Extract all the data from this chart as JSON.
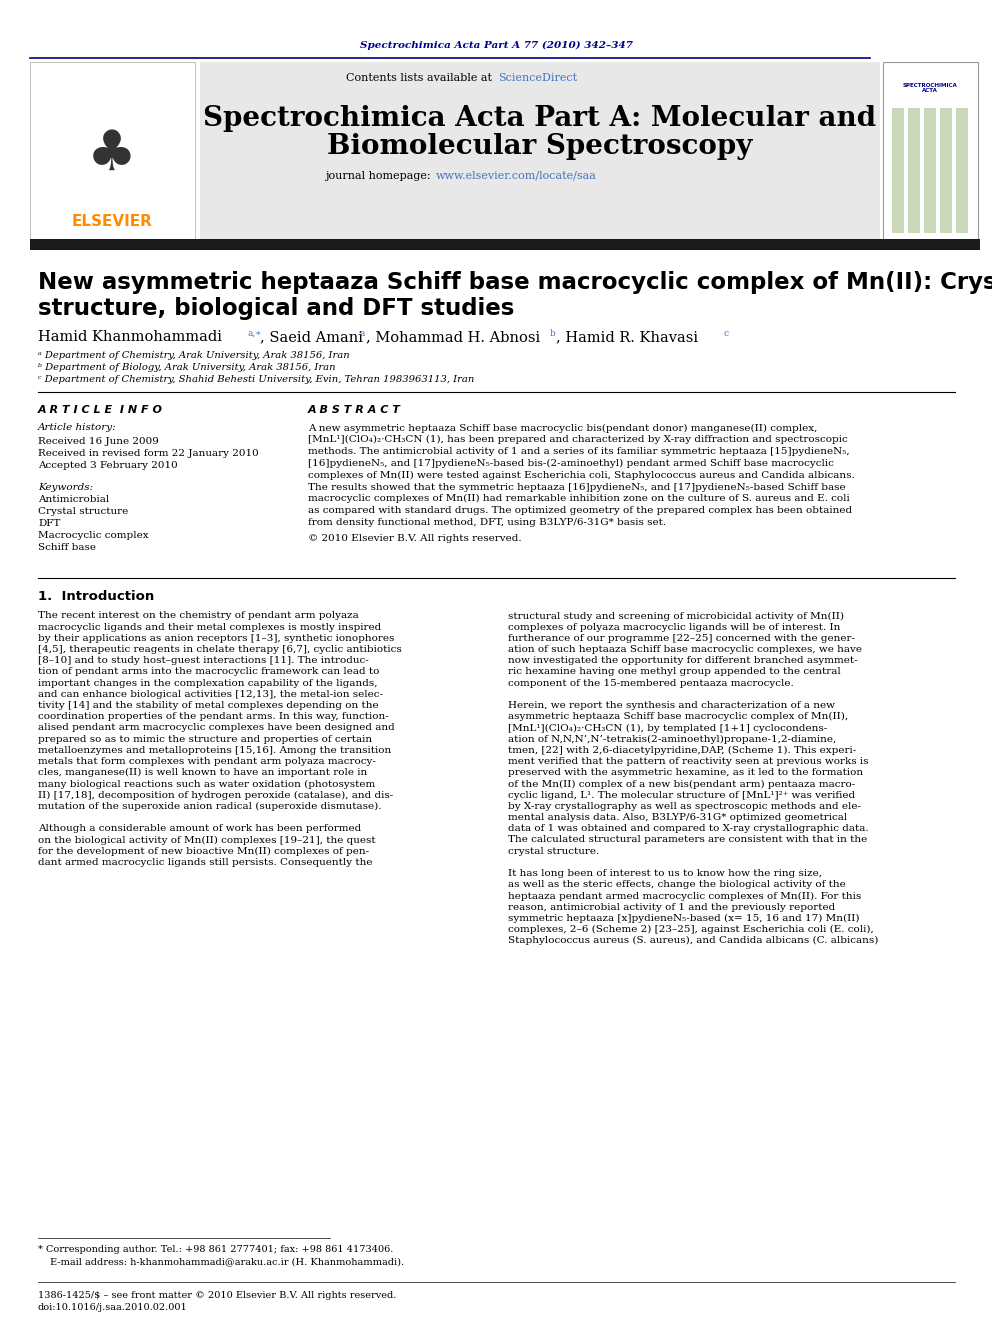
{
  "page_bg": "#ffffff",
  "top_journal_ref": "Spectrochimica Acta Part A 77 (2010) 342–347",
  "top_journal_ref_color": "#00008B",
  "journal_name_line1": "Spectrochimica Acta Part A: Molecular and",
  "journal_name_line2": "Biomolecular Spectroscopy",
  "journal_homepage_url": "www.elsevier.com/locate/saa",
  "sciencedirect_color": "#4472C4",
  "elsevier_color": "#FF8C00",
  "black_bar_color": "#1a1a1a",
  "affil_a": "ᵃ Department of Chemistry, Arak University, Arak 38156, Iran",
  "affil_b": "ᵇ Department of Biology, Arak University, Arak 38156, Iran",
  "affil_c": "ᶜ Department of Chemistry, Shahid Behesti University, Evin, Tehran 1983963113, Iran",
  "article_info_header": "A R T I C L E  I N F O",
  "abstract_header": "A B S T R A C T",
  "article_history_label": "Article history:",
  "received_text": "Received 16 June 2009",
  "revised_text": "Received in revised form 22 January 2010",
  "accepted_text": "Accepted 3 February 2010",
  "keywords_label": "Keywords:",
  "keywords": [
    "Antimicrobial",
    "Crystal structure",
    "DFT",
    "Macrocyclic complex",
    "Schiff base"
  ],
  "abstract_lines": [
    "A new asymmetric heptaaza Schiff base macrocyclic bis(pendant donor) manganese(II) complex,",
    "[MnL¹](ClO₄)₂·CH₃CN (1), has been prepared and characterized by X-ray diffraction and spectroscopic",
    "methods. The antimicrobial activity of 1 and a series of its familiar symmetric heptaaza [15]pydieneN₅,",
    "[16]pydieneN₅, and [17]pydieneN₅-based bis-(2-aminoethyl) pendant armed Schiff base macrocyclic",
    "complexes of Mn(II) were tested against Escherichia coli, Staphylococcus aureus and Candida albicans.",
    "The results showed that the symmetric heptaaza [16]pydieneN₅, and [17]pydieneN₅-based Schiff base",
    "macrocyclic complexes of Mn(II) had remarkable inhibition zone on the culture of S. aureus and E. coli",
    "as compared with standard drugs. The optimized geometry of the prepared complex has been obtained",
    "from density functional method, DFT, using B3LYP/6-31G* basis set."
  ],
  "copyright_text": "© 2010 Elsevier B.V. All rights reserved.",
  "section1_header": "1.  Introduction",
  "intro_col1_lines": [
    "The recent interest on the chemistry of pendant arm polyaza",
    "macrocyclic ligands and their metal complexes is mostly inspired",
    "by their applications as anion receptors [1–3], synthetic ionophores",
    "[4,5], therapeutic reagents in chelate therapy [6,7], cyclic antibiotics",
    "[8–10] and to study host–guest interactions [11]. The introduc-",
    "tion of pendant arms into the macrocyclic framework can lead to",
    "important changes in the complexation capability of the ligands,",
    "and can enhance biological activities [12,13], the metal-ion selec-",
    "tivity [14] and the stability of metal complexes depending on the",
    "coordination properties of the pendant arms. In this way, function-",
    "alised pendant arm macrocyclic complexes have been designed and",
    "prepared so as to mimic the structure and properties of certain",
    "metalloenzymes and metalloproteins [15,16]. Among the transition",
    "metals that form complexes with pendant arm polyaza macrocy-",
    "cles, manganese(II) is well known to have an important role in",
    "many biological reactions such as water oxidation (photosystem",
    "II) [17,18], decomposition of hydrogen peroxide (catalase), and dis-",
    "mutation of the superoxide anion radical (superoxide dismutase).",
    "",
    "Although a considerable amount of work has been performed",
    "on the biological activity of Mn(II) complexes [19–21], the quest",
    "for the development of new bioactive Mn(II) complexes of pen-",
    "dant armed macrocyclic ligands still persists. Consequently the"
  ],
  "intro_col2_lines": [
    "structural study and screening of microbicidal activity of Mn(II)",
    "complexes of polyaza macrocyclic ligands will be of interest. In",
    "furtherance of our programme [22–25] concerned with the gener-",
    "ation of such heptaaza Schiff base macrocyclic complexes, we have",
    "now investigated the opportunity for different branched asymmet-",
    "ric hexamine having one methyl group appended to the central",
    "component of the 15-membered pentaaza macrocycle.",
    "",
    "Herein, we report the synthesis and characterization of a new",
    "asymmetric heptaaza Schiff base macrocyclic complex of Mn(II),",
    "[MnL¹](ClO₄)₂·CH₃CN (1), by templated [1+1] cyclocondens-",
    "ation of N,N,N’,N’-tetrakis(2-aminoethyl)propane-1,2-diamine,",
    "tmen, [22] with 2,6-diacetylpyridine,DAP, (Scheme 1). This experi-",
    "ment verified that the pattern of reactivity seen at previous works is",
    "preserved with the asymmetric hexamine, as it led to the formation",
    "of the Mn(II) complex of a new bis(pendant arm) pentaaza macro-",
    "cyclic ligand, L¹. The molecular structure of [MnL¹]²⁺ was verified",
    "by X-ray crystallography as well as spectroscopic methods and ele-",
    "mental analysis data. Also, B3LYP/6-31G* optimized geometrical",
    "data of 1 was obtained and compared to X-ray crystallographic data.",
    "The calculated structural parameters are consistent with that in the",
    "crystal structure.",
    "",
    "It has long been of interest to us to know how the ring size,",
    "as well as the steric effects, change the biological activity of the",
    "heptaaza pendant armed macrocyclic complexes of Mn(II). For this",
    "reason, antimicrobial activity of 1 and the previously reported",
    "symmetric heptaaza [x]pydieneN₅-based (x= 15, 16 and 17) Mn(II)",
    "complexes, 2–6 (Scheme 2) [23–25], against Escherichia coli (E. coli),",
    "Staphylococcus aureus (S. aureus), and Candida albicans (C. albicans)"
  ],
  "footer_line1": "* Corresponding author. Tel.: +98 861 2777401; fax: +98 861 4173406.",
  "footer_line2": "  E-mail address: h-khanmohammadi@araku.ac.ir (H. Khanmohammadi).",
  "footer_issn1": "1386-1425/$ – see front matter © 2010 Elsevier B.V. All rights reserved.",
  "footer_issn2": "doi:10.1016/j.saa.2010.02.001"
}
